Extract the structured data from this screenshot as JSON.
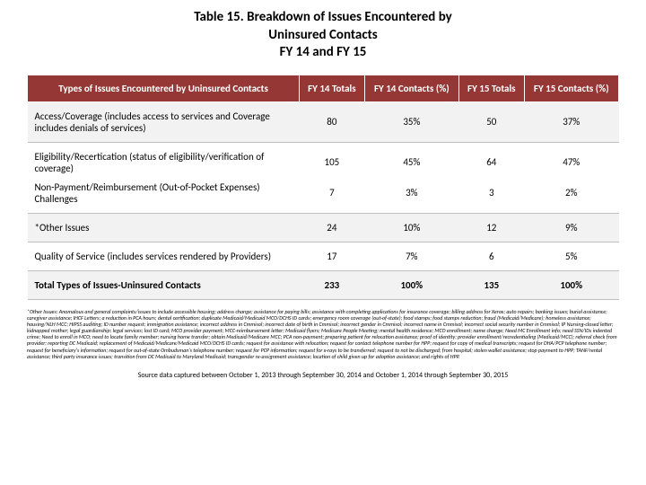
{
  "title_l1": "Table 15. Breakdown of Issues Encountered by",
  "title_l2": "Uninsured Contacts",
  "title_l3": "FY 14 and FY 15",
  "header_color": "#953735",
  "alt_row_color": "#f2f2f2",
  "columns": [
    "Types of Issues Encountered by Uninsured Contacts",
    "FY 14 Totals",
    "FY 14 Contacts (%)",
    "FY 15 Totals",
    "FY 15 Contacts (%)"
  ],
  "rows": [
    {
      "alt": true,
      "label": "Access/Coverage (includes access to services and Coverage includes denials of services)",
      "c1": "80",
      "c2": "35%",
      "c3": "50",
      "c4": "37%"
    },
    {
      "alt": false,
      "label": "Eligibility/Recertication (status of eligibility/verification of coverage)",
      "c1": "105",
      "c2": "45%",
      "c3": "64",
      "c4": "47%"
    },
    {
      "alt": false,
      "label": "Non-Payment/Reimbursement (Out-of-Pocket Expenses) Challenges",
      "c1": "7",
      "c2": "3%",
      "c3": "3",
      "c4": "2%"
    },
    {
      "alt": true,
      "label": "*Other Issues",
      "c1": "24",
      "c2": "10%",
      "c3": "12",
      "c4": "9%"
    },
    {
      "alt": false,
      "label": "Quality of Service (includes services rendered by Providers)",
      "c1": "17",
      "c2": "7%",
      "c3": "6",
      "c4": "5%"
    }
  ],
  "total": {
    "label": "Total Types of Issues-Uninsured Contacts",
    "c1": "233",
    "c2": "100%",
    "c3": "135",
    "c4": "100%"
  },
  "footnote": "*Other Issues: Anomalous and general complaints/issues to include accessible housing; address change; assistance for paying bills; assistance with completing applications for insurance coverage; billing address for Xerox; auto repairs; banking issues; burial assistance; caregiver assistance; IHCF Letters; a reduction in PCA hours; dental certification; duplicate Medicaid/Medicaid MCO/DCHS ID cards; emergency room coverage (out-of-state); food stamps; food stamps reduction; fraud (Medicaid/Medicare); homeless assistance; housing/NLH MCC; HIPSS auditing; ID number request; immigration assistance; incorrect address in Cmmisol; incorrect date of birth in Cmmisol; incorrect gender in Cmmisol; incorrect name in Cmmisol; incorrect social security number in Cmmisol; IP Nursing-closed letter; kidnapped mother; legal guardianship; legal services; lost ID card; MCO provider payment; MCC-reimbursement letter; Medicaid flyers; Medicare People Meeting; mental health residence; MCO enrollment; name change; Need MC Enrollment info; need SSN/IDs indented crime; Need to enroll in MCO; need to locate family member; nursing home transfer; obtain Medicaid/Medicare MCC; PCA non-payment; preparing patient for relocation assistance; proof of identity; provider enrollment/recredentialing (Medicaid/MCC); referral check from provider; reporting DC Medicaid; replacement of Medicaid/Medicare/Medicaid MCO/DCHS ID cards; request for assistance with relocation; request for contact telephone number for HPP; request for copy of medical transcripts; request for DHA/PCP telephone number; request for beneficiary's information; request for out-of-state Ombudsman's telephone number; request for PCP information; request for x-rays to be transferred; request to not be discharged; from hospital; stolen wallet assistance; stop payment to HPP; TANF/rental assistance; third party insurance issues; transition from DC Medicaid to Maryland Medicaid; transgender re-assignment assistance; location of child given up for adoption assistance; and rights of HPP.",
  "source": "Source data captured between October 1, 2013 through September 30, 2014 and October 1, 2014 through September 30, 2015"
}
